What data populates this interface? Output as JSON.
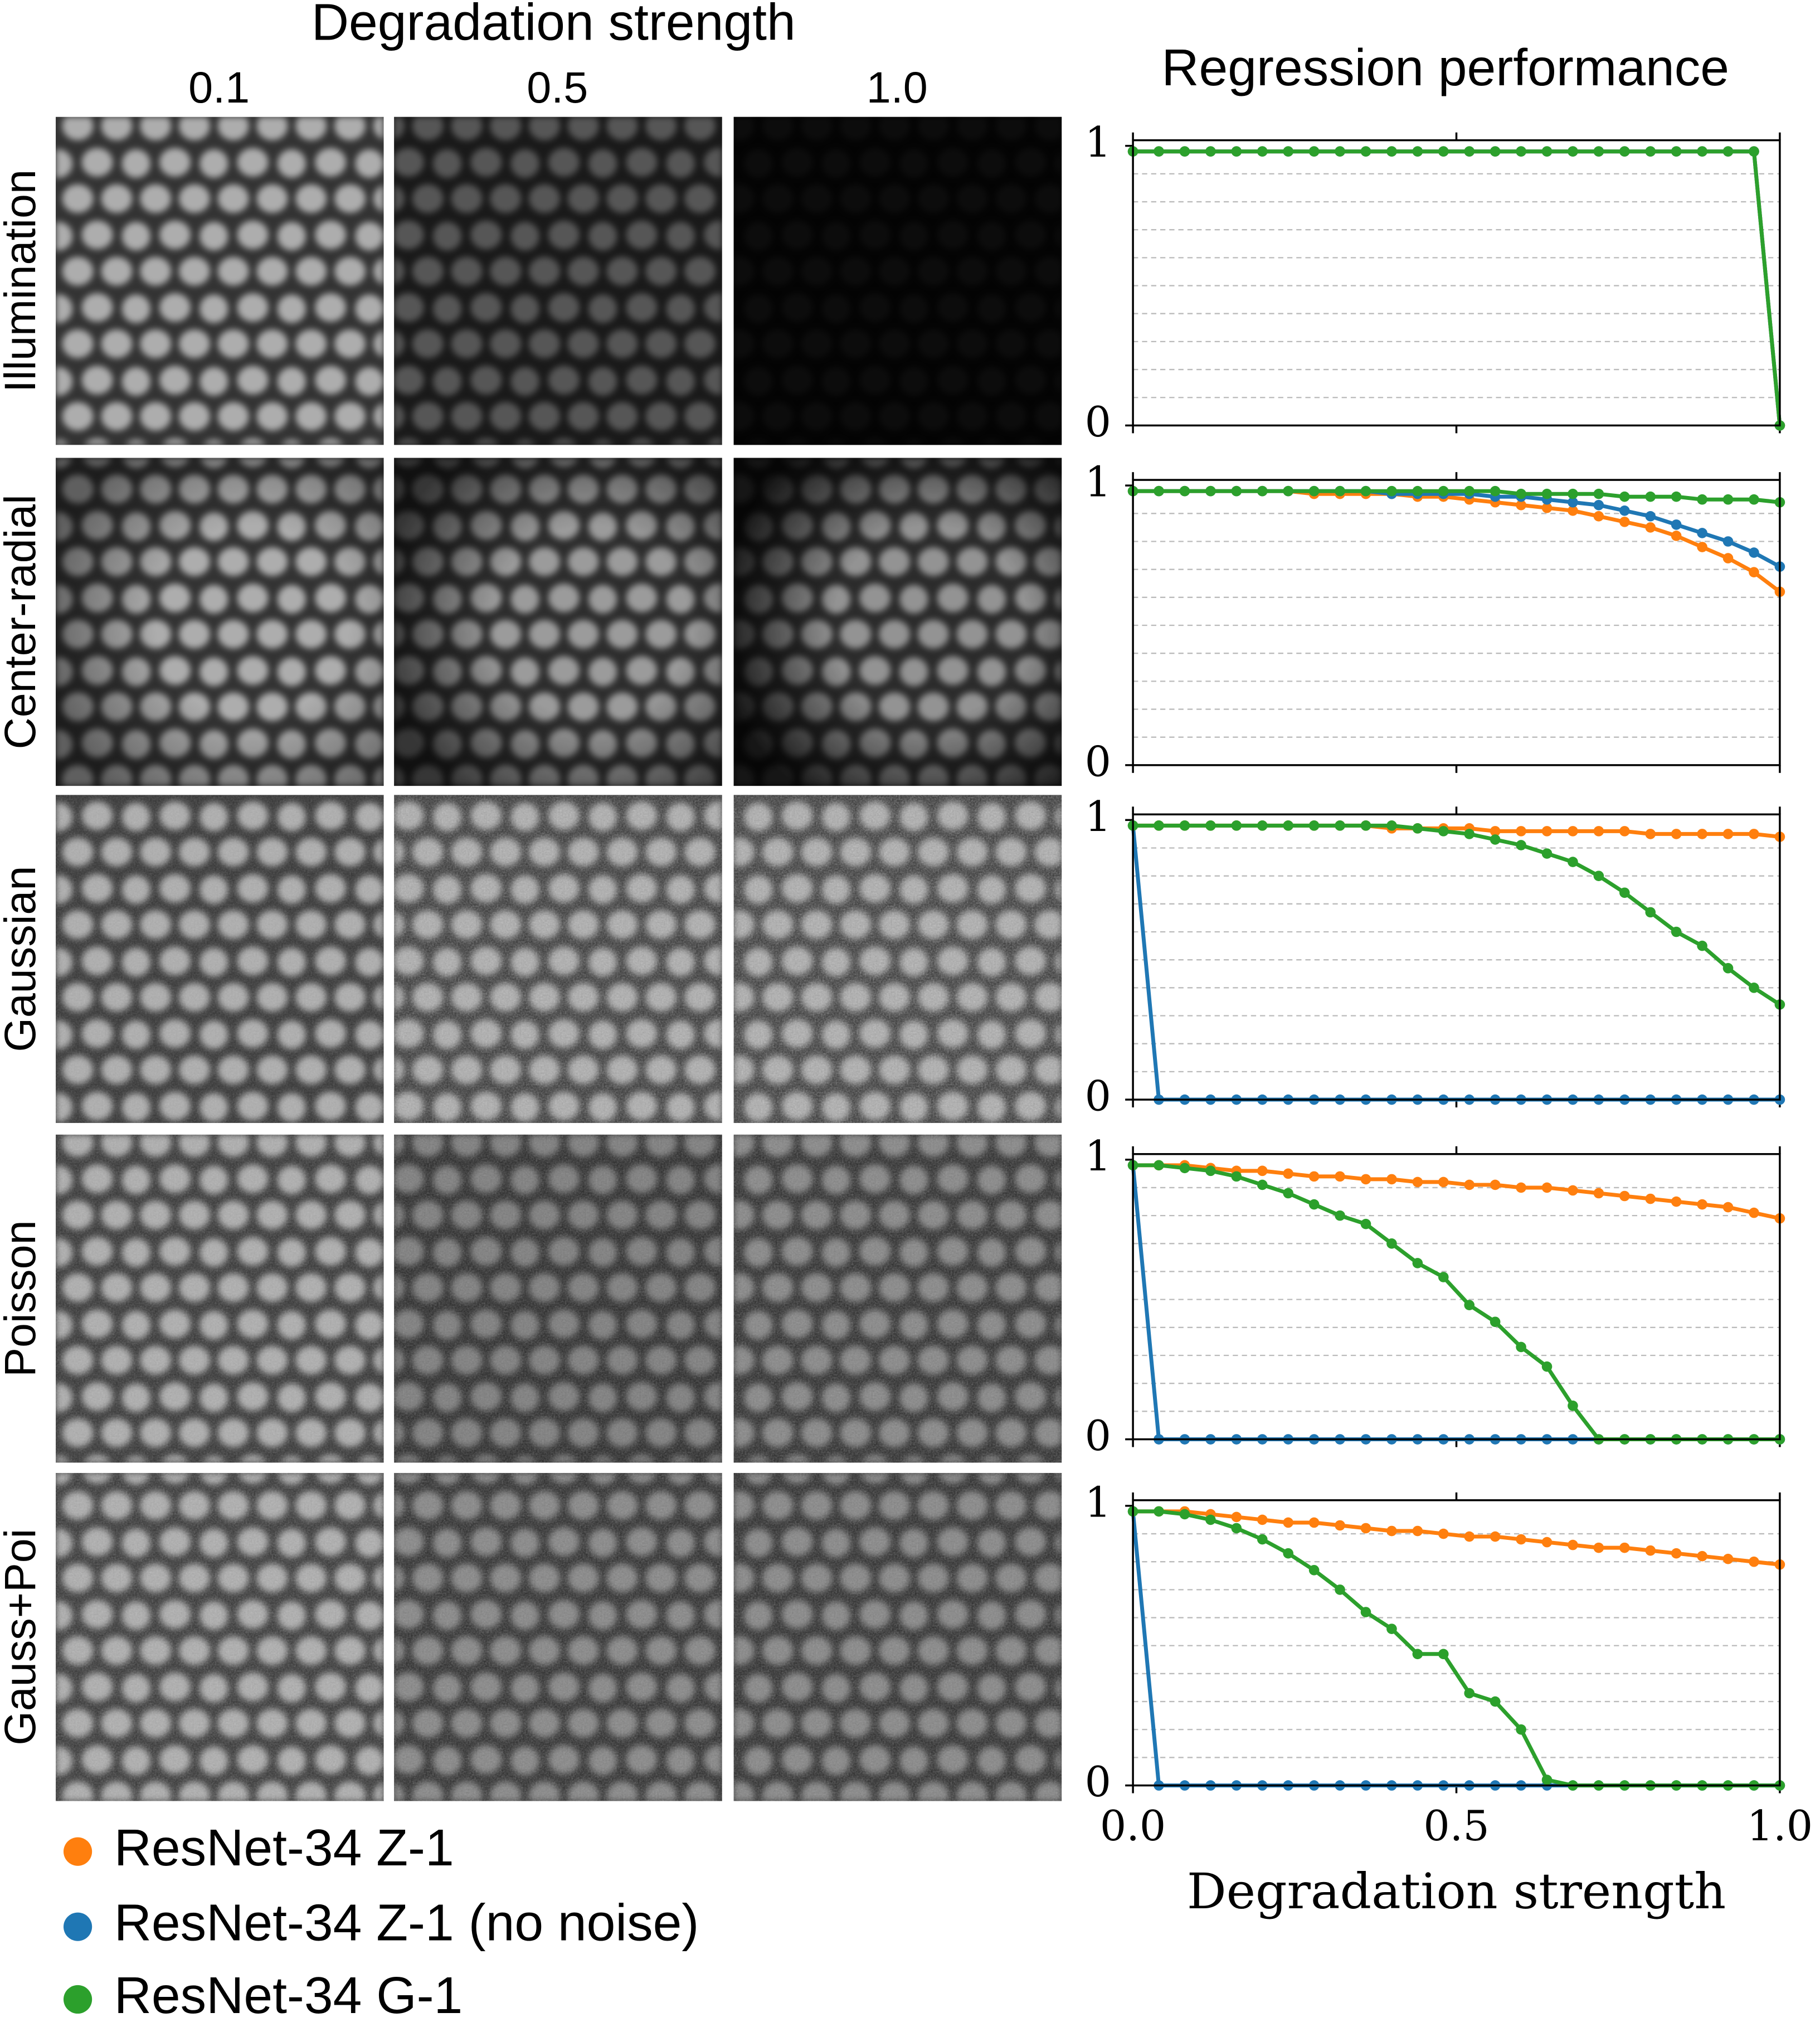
{
  "header": {
    "title": "Degradation strength",
    "columns": [
      "0.1",
      "0.5",
      "1.0"
    ],
    "rows": [
      "Illumination",
      "Center-radial",
      "Gaussian",
      "Poisson",
      "Gauss+Poi"
    ]
  },
  "chart_data": [
    {
      "type": "line",
      "title": "Regression performance",
      "x": [
        0,
        0.04,
        0.08,
        0.12,
        0.16,
        0.2,
        0.24,
        0.28,
        0.32,
        0.36,
        0.4,
        0.44,
        0.48,
        0.52,
        0.56,
        0.6,
        0.64,
        0.68,
        0.72,
        0.76,
        0.8,
        0.84,
        0.88,
        0.92,
        0.96,
        1
      ],
      "xlim": [
        0,
        1
      ],
      "xticks": [
        0,
        0.5,
        1
      ],
      "ylim": [
        0,
        1.02
      ],
      "yticks": [
        0,
        1
      ],
      "yminor": [
        0.1,
        0.2,
        0.3,
        0.4,
        0.5,
        0.6,
        0.7,
        0.8,
        0.9
      ],
      "grid": true,
      "series": [
        {
          "color": "#ff7f0e",
          "values": [
            0.98,
            0.98,
            0.98,
            0.98,
            0.98,
            0.98,
            0.98,
            0.98,
            0.98,
            0.98,
            0.98,
            0.98,
            0.98,
            0.98,
            0.98,
            0.98,
            0.98,
            0.98,
            0.98,
            0.98,
            0.98,
            0.98,
            0.98,
            0.98,
            0.98,
            0
          ]
        },
        {
          "color": "#1f77b4",
          "values": [
            0.98,
            0.98,
            0.98,
            0.98,
            0.98,
            0.98,
            0.98,
            0.98,
            0.98,
            0.98,
            0.98,
            0.98,
            0.98,
            0.98,
            0.98,
            0.98,
            0.98,
            0.98,
            0.98,
            0.98,
            0.98,
            0.98,
            0.98,
            0.98,
            0.98,
            0
          ]
        },
        {
          "color": "#2ca02c",
          "values": [
            0.98,
            0.98,
            0.98,
            0.98,
            0.98,
            0.98,
            0.98,
            0.98,
            0.98,
            0.98,
            0.98,
            0.98,
            0.98,
            0.98,
            0.98,
            0.98,
            0.98,
            0.98,
            0.98,
            0.98,
            0.98,
            0.98,
            0.98,
            0.98,
            0.98,
            0
          ]
        }
      ]
    },
    {
      "type": "line",
      "x": [
        0,
        0.04,
        0.08,
        0.12,
        0.16,
        0.2,
        0.24,
        0.28,
        0.32,
        0.36,
        0.4,
        0.44,
        0.48,
        0.52,
        0.56,
        0.6,
        0.64,
        0.68,
        0.72,
        0.76,
        0.8,
        0.84,
        0.88,
        0.92,
        0.96,
        1
      ],
      "xlim": [
        0,
        1
      ],
      "xticks": [
        0,
        0.5,
        1
      ],
      "ylim": [
        0,
        1.02
      ],
      "yticks": [
        0,
        1
      ],
      "yminor": [
        0.1,
        0.2,
        0.3,
        0.4,
        0.5,
        0.6,
        0.7,
        0.8,
        0.9
      ],
      "grid": true,
      "series": [
        {
          "color": "#ff7f0e",
          "values": [
            0.98,
            0.98,
            0.98,
            0.98,
            0.98,
            0.98,
            0.98,
            0.97,
            0.97,
            0.97,
            0.97,
            0.96,
            0.96,
            0.95,
            0.94,
            0.93,
            0.92,
            0.91,
            0.89,
            0.87,
            0.85,
            0.82,
            0.78,
            0.74,
            0.69,
            0.62
          ]
        },
        {
          "color": "#1f77b4",
          "values": [
            0.98,
            0.98,
            0.98,
            0.98,
            0.98,
            0.98,
            0.98,
            0.98,
            0.98,
            0.98,
            0.97,
            0.97,
            0.97,
            0.97,
            0.96,
            0.96,
            0.95,
            0.94,
            0.93,
            0.91,
            0.89,
            0.86,
            0.83,
            0.8,
            0.76,
            0.71
          ]
        },
        {
          "color": "#2ca02c",
          "values": [
            0.98,
            0.98,
            0.98,
            0.98,
            0.98,
            0.98,
            0.98,
            0.98,
            0.98,
            0.98,
            0.98,
            0.98,
            0.98,
            0.98,
            0.98,
            0.97,
            0.97,
            0.97,
            0.97,
            0.96,
            0.96,
            0.96,
            0.95,
            0.95,
            0.95,
            0.94
          ]
        }
      ]
    },
    {
      "type": "line",
      "x": [
        0,
        0.04,
        0.08,
        0.12,
        0.16,
        0.2,
        0.24,
        0.28,
        0.32,
        0.36,
        0.4,
        0.44,
        0.48,
        0.52,
        0.56,
        0.6,
        0.64,
        0.68,
        0.72,
        0.76,
        0.8,
        0.84,
        0.88,
        0.92,
        0.96,
        1
      ],
      "xlim": [
        0,
        1
      ],
      "xticks": [
        0,
        0.5,
        1
      ],
      "ylim": [
        0,
        1.02
      ],
      "yticks": [
        0,
        1
      ],
      "yminor": [
        0.1,
        0.2,
        0.3,
        0.4,
        0.5,
        0.6,
        0.7,
        0.8,
        0.9
      ],
      "grid": true,
      "series": [
        {
          "color": "#ff7f0e",
          "values": [
            0.98,
            0.98,
            0.98,
            0.98,
            0.98,
            0.98,
            0.98,
            0.98,
            0.98,
            0.98,
            0.97,
            0.97,
            0.97,
            0.97,
            0.96,
            0.96,
            0.96,
            0.96,
            0.96,
            0.96,
            0.95,
            0.95,
            0.95,
            0.95,
            0.95,
            0.94
          ]
        },
        {
          "color": "#1f77b4",
          "values": [
            0.98,
            0,
            0,
            0,
            0,
            0,
            0,
            0,
            0,
            0,
            0,
            0,
            0,
            0,
            0,
            0,
            0,
            0,
            0,
            0,
            0,
            0,
            0,
            0,
            0,
            0
          ]
        },
        {
          "color": "#2ca02c",
          "values": [
            0.98,
            0.98,
            0.98,
            0.98,
            0.98,
            0.98,
            0.98,
            0.98,
            0.98,
            0.98,
            0.98,
            0.97,
            0.96,
            0.95,
            0.93,
            0.91,
            0.88,
            0.85,
            0.8,
            0.74,
            0.67,
            0.6,
            0.55,
            0.47,
            0.4,
            0.34
          ]
        }
      ]
    },
    {
      "type": "line",
      "x": [
        0,
        0.04,
        0.08,
        0.12,
        0.16,
        0.2,
        0.24,
        0.28,
        0.32,
        0.36,
        0.4,
        0.44,
        0.48,
        0.52,
        0.56,
        0.6,
        0.64,
        0.68,
        0.72,
        0.76,
        0.8,
        0.84,
        0.88,
        0.92,
        0.96,
        1
      ],
      "xlim": [
        0,
        1
      ],
      "xticks": [
        0,
        0.5,
        1
      ],
      "ylim": [
        0,
        1.02
      ],
      "yticks": [
        0,
        1
      ],
      "yminor": [
        0.1,
        0.2,
        0.3,
        0.4,
        0.5,
        0.6,
        0.7,
        0.8,
        0.9
      ],
      "grid": true,
      "series": [
        {
          "color": "#ff7f0e",
          "values": [
            0.98,
            0.98,
            0.98,
            0.97,
            0.96,
            0.96,
            0.95,
            0.94,
            0.94,
            0.93,
            0.93,
            0.92,
            0.92,
            0.91,
            0.91,
            0.9,
            0.9,
            0.89,
            0.88,
            0.87,
            0.86,
            0.85,
            0.84,
            0.83,
            0.81,
            0.79
          ]
        },
        {
          "color": "#1f77b4",
          "values": [
            0.98,
            0,
            0,
            0,
            0,
            0,
            0,
            0,
            0,
            0,
            0,
            0,
            0,
            0,
            0,
            0,
            0,
            0,
            0,
            0,
            0,
            0,
            0,
            0,
            0,
            0
          ]
        },
        {
          "color": "#2ca02c",
          "values": [
            0.98,
            0.98,
            0.97,
            0.96,
            0.94,
            0.91,
            0.88,
            0.84,
            0.8,
            0.77,
            0.7,
            0.63,
            0.58,
            0.48,
            0.42,
            0.33,
            0.26,
            0.12,
            0,
            0,
            0,
            0,
            0,
            0,
            0,
            0
          ]
        }
      ]
    },
    {
      "type": "line",
      "x": [
        0,
        0.04,
        0.08,
        0.12,
        0.16,
        0.2,
        0.24,
        0.28,
        0.32,
        0.36,
        0.4,
        0.44,
        0.48,
        0.52,
        0.56,
        0.6,
        0.64,
        0.68,
        0.72,
        0.76,
        0.8,
        0.84,
        0.88,
        0.92,
        0.96,
        1
      ],
      "xlim": [
        0,
        1
      ],
      "xticks": [
        {
          "value": 0,
          "label": "0.0"
        },
        {
          "value": 0.5,
          "label": "0.5"
        },
        {
          "value": 1,
          "label": "1.0"
        }
      ],
      "xlabel": "Degradation strength",
      "ylim": [
        0,
        1.02
      ],
      "yticks": [
        0,
        1
      ],
      "yminor": [
        0.1,
        0.2,
        0.3,
        0.4,
        0.5,
        0.6,
        0.7,
        0.8,
        0.9
      ],
      "grid": true,
      "series": [
        {
          "name": "ResNet-34 Z-1",
          "color": "#ff7f0e",
          "values": [
            0.98,
            0.98,
            0.98,
            0.97,
            0.96,
            0.95,
            0.94,
            0.94,
            0.93,
            0.92,
            0.91,
            0.91,
            0.9,
            0.89,
            0.89,
            0.88,
            0.87,
            0.86,
            0.85,
            0.85,
            0.84,
            0.83,
            0.82,
            0.81,
            0.8,
            0.79
          ]
        },
        {
          "name": "ResNet-34 Z-1 (no noise)",
          "color": "#1f77b4",
          "values": [
            0.98,
            0,
            0,
            0,
            0,
            0,
            0,
            0,
            0,
            0,
            0,
            0,
            0,
            0,
            0,
            0,
            0,
            0,
            0,
            0,
            0,
            0,
            0,
            0,
            0,
            0
          ]
        },
        {
          "name": "ResNet-34 G-1",
          "color": "#2ca02c",
          "values": [
            0.98,
            0.98,
            0.97,
            0.95,
            0.92,
            0.88,
            0.83,
            0.77,
            0.7,
            0.62,
            0.56,
            0.47,
            0.47,
            0.33,
            0.3,
            0.2,
            0.02,
            0,
            0,
            0,
            0,
            0,
            0,
            0,
            0,
            0
          ]
        }
      ]
    }
  ]
}
